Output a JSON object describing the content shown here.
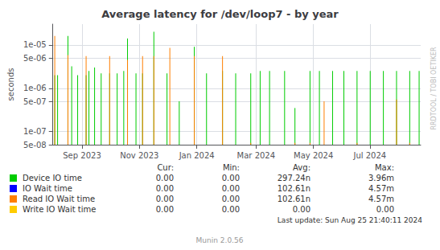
{
  "chart_data": {
    "type": "bar",
    "title": "Average latency for /dev/loop7 - by year",
    "ylabel": "seconds",
    "log": "y",
    "grid": true,
    "legend": "bottom",
    "xlim": [
      1690848000,
      1724630400
    ],
    "xticks": [
      {
        "value": 1693526400,
        "label": "Sep 2023"
      },
      {
        "value": 1698796800,
        "label": "Nov 2023"
      },
      {
        "value": 1704067200,
        "label": "Jan 2024"
      },
      {
        "value": 1709510400,
        "label": "Mar 2024"
      },
      {
        "value": 1714780800,
        "label": "May 2024"
      },
      {
        "value": 1719964800,
        "label": "Jul 2024"
      }
    ],
    "ylim": [
      5e-08,
      3e-05
    ],
    "yticks": [
      {
        "value": 5e-08,
        "label": "5e-08"
      },
      {
        "value": 1e-07,
        "label": "1e-07"
      },
      {
        "value": 5e-07,
        "label": "5e-07"
      },
      {
        "value": 1e-06,
        "label": "1e-06"
      },
      {
        "value": 5e-06,
        "label": "5e-06"
      },
      {
        "value": 1e-05,
        "label": "1e-05"
      }
    ],
    "stats_header": [
      "Cur:",
      "Min:",
      "Avg:",
      "Max:"
    ],
    "series": [
      {
        "name": "Device IO time",
        "color": "#00cc00",
        "x": [
          1691020800,
          1691280000,
          1692230400,
          1692576000,
          1693123200,
          1693900800,
          1694160000,
          1694678400,
          1695283200,
          1696060800,
          1696752000,
          1697356800,
          1697702400,
          1698480000,
          1699084800,
          1700121600,
          1701331200,
          1702454400,
          1703836800,
          1704960000,
          1706428800,
          1707638400,
          1709020800,
          1709884800,
          1710748800,
          1712131200,
          1713081600,
          1714464000,
          1715328000,
          1716537600,
          1717574400,
          1718784000,
          1719993600,
          1721203200,
          1722412800,
          1723622400,
          1724486400
        ],
        "values": [
          2e-06,
          2e-06,
          1.6e-05,
          3.2e-06,
          2e-06,
          2e-06,
          2.5e-06,
          3e-06,
          2.2e-06,
          2.2e-06,
          2.2e-06,
          2.5e-06,
          1.4e-05,
          2.2e-06,
          2.2e-06,
          2e-05,
          2.2e-06,
          5e-07,
          9e-06,
          2.2e-06,
          2.5e-06,
          2.2e-06,
          2.2e-06,
          2.5e-06,
          2.5e-06,
          2.5e-06,
          3.5e-07,
          2.5e-06,
          2.5e-06,
          2.5e-06,
          2.5e-06,
          2.5e-06,
          2.5e-06,
          2.5e-06,
          2.5e-06,
          2.5e-06,
          2.5e-06
        ],
        "stats": [
          "0.00",
          "0.00",
          "297.24n",
          "3.96m"
        ]
      },
      {
        "name": "IO Wait time",
        "color": "#0000ff",
        "x": [],
        "values": [],
        "stats": [
          "0.00",
          "0.00",
          "102.61n",
          "4.57m"
        ]
      },
      {
        "name": "Read IO Wait time",
        "color": "#ff7f00",
        "x": [
          1691020800,
          1692230400,
          1693900800,
          1696060800,
          1697702400,
          1699084800,
          1700121600,
          1701590400,
          1703836800,
          1706428800,
          1709020800,
          1713081600,
          1714464000,
          1715760000,
          1718784000,
          1722412800,
          1723622400
        ],
        "values": [
          1.6e-05,
          5.8e-06,
          5.5e-06,
          5.5e-06,
          4.5e-06,
          5.5e-06,
          5.5e-06,
          8.5e-06,
          5.5e-06,
          5.5e-06,
          5.5e-08,
          5.5e-08,
          5.5e-08,
          5e-07,
          5.5e-08,
          5.5e-07,
          5.5e-08
        ],
        "stats": [
          "0.00",
          "0.00",
          "102.61n",
          "4.57m"
        ]
      },
      {
        "name": "Write IO Wait time",
        "color": "#ffcc00",
        "x": [],
        "values": [],
        "stats": [
          "0.00",
          "0.00",
          "0.00",
          "0.00"
        ]
      }
    ],
    "annotations": [
      "RRDTOOL / TOBI OETIKER",
      "Last update: Sun Aug 25 21:40:11 2024",
      "Munin 2.0.56"
    ]
  }
}
